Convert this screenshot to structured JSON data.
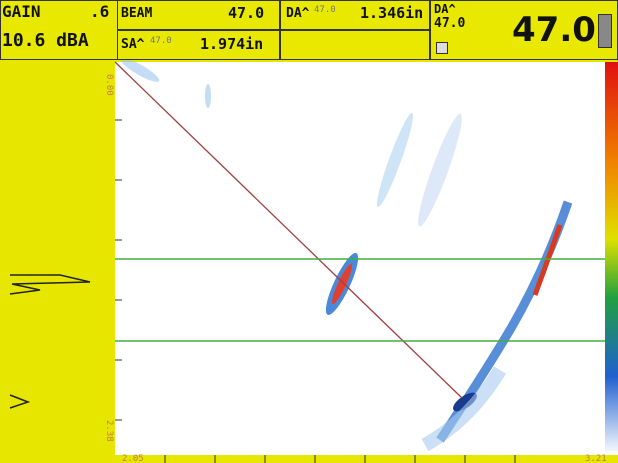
{
  "header": {
    "gain_label": "GAIN",
    "gain_step": ".6",
    "gain_value": "10.6 dBA",
    "beam_label": "BEAM",
    "beam_value": "47.0",
    "da_label": "DA^",
    "da_angle": "47.0",
    "da_value": "1.346in",
    "sa_label": "SA^",
    "sa_angle": "47.0",
    "sa_value": "1.974in",
    "da2_label": "DA^",
    "da2_angle": "47.0",
    "angle_display": "47.0"
  },
  "scan": {
    "depth_start": "0.00",
    "depth_end": "2.38",
    "x_start": "2.05",
    "x_end": "3.21"
  }
}
